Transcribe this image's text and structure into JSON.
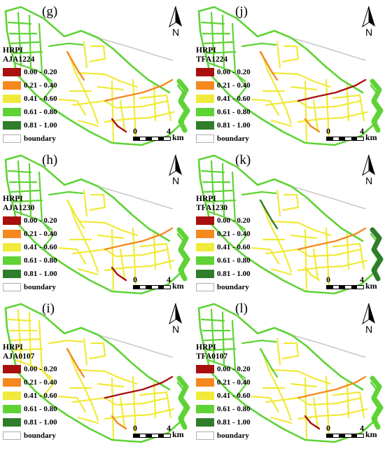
{
  "panels": [
    {
      "label": "(g)",
      "index": "AJA1224",
      "scheme": "g"
    },
    {
      "label": "(j)",
      "index": "TFA1224",
      "scheme": "j"
    },
    {
      "label": "(h)",
      "index": "AJA1230",
      "scheme": "h"
    },
    {
      "label": "(k)",
      "index": "TFA1230",
      "scheme": "k"
    },
    {
      "label": "(i)",
      "index": "AJA0107",
      "scheme": "i"
    },
    {
      "label": "(l)",
      "index": "TFA0107",
      "scheme": "l"
    }
  ],
  "legend": {
    "title": "HRPI",
    "classes": [
      {
        "label": "0.00 - 0.20",
        "color": "#a8100f"
      },
      {
        "label": "0.21 - 0.40",
        "color": "#f5891e"
      },
      {
        "label": "0.41 - 0.60",
        "color": "#f0ea3a"
      },
      {
        "label": "0.61 - 0.80",
        "color": "#5fd336"
      },
      {
        "label": "0.81 - 1.00",
        "color": "#2f7d2a"
      },
      {
        "label": "boundary",
        "color": "#ffffff"
      }
    ]
  },
  "north_arrow": {
    "label": "N"
  },
  "scale_bar": {
    "start": "0",
    "end": "4",
    "unit": "km"
  }
}
